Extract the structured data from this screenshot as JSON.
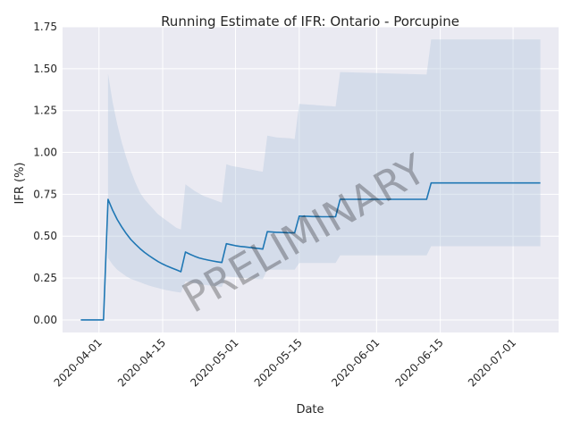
{
  "chart_data": {
    "type": "line",
    "title": "Running Estimate of IFR: Ontario - Porcupine",
    "xlabel": "Date",
    "ylabel": "IFR (%)",
    "watermark": "PRELIMINARY",
    "xlim": [
      "2020-03-24",
      "2020-07-11"
    ],
    "ylim": [
      -0.075,
      1.75
    ],
    "grid": true,
    "x_ticks": [
      "2020-04-01",
      "2020-04-15",
      "2020-05-01",
      "2020-05-15",
      "2020-06-01",
      "2020-06-15",
      "2020-07-01"
    ],
    "y_ticks": [
      "0.00",
      "0.25",
      "0.50",
      "0.75",
      "1.00",
      "1.25",
      "1.50",
      "1.75"
    ],
    "colors": {
      "line": "#1f77b4",
      "band": "#b0c4de",
      "background": "#eaeaf2",
      "grid": "#ffffff"
    },
    "series": [
      {
        "x": [
          "2020-03-28",
          "2020-03-29",
          "2020-03-30",
          "2020-03-31",
          "2020-04-01",
          "2020-04-02",
          "2020-04-03",
          "2020-04-04",
          "2020-04-05",
          "2020-04-06",
          "2020-04-07",
          "2020-04-08",
          "2020-04-09",
          "2020-04-10",
          "2020-04-11",
          "2020-04-12",
          "2020-04-13",
          "2020-04-14",
          "2020-04-15",
          "2020-04-16",
          "2020-04-17",
          "2020-04-18",
          "2020-04-19",
          "2020-04-20",
          "2020-04-21",
          "2020-04-22",
          "2020-04-23",
          "2020-04-24",
          "2020-04-25",
          "2020-04-26",
          "2020-04-27",
          "2020-04-28",
          "2020-04-29",
          "2020-04-30",
          "2020-05-01",
          "2020-05-02",
          "2020-05-03",
          "2020-05-04",
          "2020-05-05",
          "2020-05-06",
          "2020-05-07",
          "2020-05-08",
          "2020-05-09",
          "2020-05-10",
          "2020-05-11",
          "2020-05-12",
          "2020-05-13",
          "2020-05-14",
          "2020-05-15",
          "2020-05-16",
          "2020-05-17",
          "2020-05-18",
          "2020-05-19",
          "2020-05-20",
          "2020-05-21",
          "2020-05-22",
          "2020-05-23",
          "2020-05-24",
          "2020-05-25",
          "2020-05-26",
          "2020-05-27",
          "2020-05-28",
          "2020-05-29",
          "2020-05-30",
          "2020-05-31",
          "2020-06-01",
          "2020-06-02",
          "2020-06-03",
          "2020-06-04",
          "2020-06-05",
          "2020-06-06",
          "2020-06-07",
          "2020-06-08",
          "2020-06-09",
          "2020-06-10",
          "2020-06-11",
          "2020-06-12",
          "2020-06-13",
          "2020-06-14",
          "2020-06-15",
          "2020-06-16",
          "2020-06-17",
          "2020-06-18",
          "2020-06-19",
          "2020-06-20",
          "2020-06-21",
          "2020-06-22",
          "2020-06-23",
          "2020-06-24",
          "2020-06-25",
          "2020-06-26",
          "2020-06-27",
          "2020-06-28",
          "2020-06-29",
          "2020-06-30",
          "2020-07-01",
          "2020-07-02",
          "2020-07-03",
          "2020-07-04",
          "2020-07-05",
          "2020-07-06",
          "2020-07-07"
        ],
        "y": [
          0,
          0,
          0,
          0,
          0,
          0,
          0.72,
          0.655,
          0.6,
          0.555,
          0.515,
          0.48,
          0.452,
          0.426,
          0.403,
          0.384,
          0.366,
          0.348,
          0.334,
          0.321,
          0.31,
          0.299,
          0.288,
          0.405,
          0.392,
          0.38,
          0.37,
          0.363,
          0.357,
          0.352,
          0.347,
          0.343,
          0.455,
          0.449,
          0.443,
          0.439,
          0.436,
          0.433,
          0.43,
          0.427,
          0.423,
          0.527,
          0.525,
          0.523,
          0.522,
          0.521,
          0.52,
          0.52,
          0.62,
          0.619,
          0.618,
          0.617,
          0.617,
          0.616,
          0.616,
          0.616,
          0.616,
          0.72,
          0.72,
          0.72,
          0.72,
          0.72,
          0.72,
          0.72,
          0.72,
          0.72,
          0.72,
          0.72,
          0.72,
          0.72,
          0.72,
          0.72,
          0.72,
          0.72,
          0.72,
          0.72,
          0.72,
          0.818,
          0.818,
          0.818,
          0.818,
          0.818,
          0.818,
          0.818,
          0.818,
          0.818,
          0.818,
          0.818,
          0.818,
          0.818,
          0.818,
          0.818,
          0.818,
          0.818,
          0.818,
          0.818,
          0.818,
          0.818,
          0.818,
          0.818,
          0.818,
          0.818
        ]
      }
    ],
    "band": {
      "x": [
        "2020-04-03",
        "2020-04-04",
        "2020-04-05",
        "2020-04-06",
        "2020-04-07",
        "2020-04-08",
        "2020-04-09",
        "2020-04-10",
        "2020-04-11",
        "2020-04-12",
        "2020-04-13",
        "2020-04-14",
        "2020-04-15",
        "2020-04-16",
        "2020-04-17",
        "2020-04-18",
        "2020-04-19",
        "2020-04-20",
        "2020-04-21",
        "2020-04-22",
        "2020-04-23",
        "2020-04-24",
        "2020-04-25",
        "2020-04-26",
        "2020-04-27",
        "2020-04-28",
        "2020-04-29",
        "2020-04-30",
        "2020-05-01",
        "2020-05-02",
        "2020-05-03",
        "2020-05-04",
        "2020-05-05",
        "2020-05-06",
        "2020-05-07",
        "2020-05-08",
        "2020-05-09",
        "2020-05-10",
        "2020-05-11",
        "2020-05-12",
        "2020-05-13",
        "2020-05-14",
        "2020-05-15",
        "2020-05-16",
        "2020-05-17",
        "2020-05-18",
        "2020-05-19",
        "2020-05-20",
        "2020-05-21",
        "2020-05-22",
        "2020-05-23",
        "2020-05-24",
        "2020-06-12",
        "2020-06-13",
        "2020-07-07"
      ],
      "lower": [
        0.37,
        0.33,
        0.3,
        0.28,
        0.26,
        0.245,
        0.235,
        0.225,
        0.215,
        0.205,
        0.197,
        0.19,
        0.183,
        0.177,
        0.172,
        0.167,
        0.163,
        0.23,
        0.225,
        0.22,
        0.215,
        0.21,
        0.207,
        0.204,
        0.2,
        0.197,
        0.26,
        0.257,
        0.254,
        0.252,
        0.25,
        0.248,
        0.246,
        0.244,
        0.243,
        0.3,
        0.3,
        0.3,
        0.3,
        0.3,
        0.3,
        0.3,
        0.34,
        0.34,
        0.34,
        0.34,
        0.34,
        0.34,
        0.34,
        0.34,
        0.34,
        0.385,
        0.385,
        0.44,
        0.44
      ],
      "upper": [
        1.47,
        1.3,
        1.17,
        1.06,
        0.97,
        0.89,
        0.82,
        0.76,
        0.72,
        0.69,
        0.66,
        0.63,
        0.61,
        0.59,
        0.57,
        0.55,
        0.54,
        0.81,
        0.79,
        0.77,
        0.755,
        0.74,
        0.73,
        0.72,
        0.71,
        0.7,
        0.93,
        0.92,
        0.915,
        0.91,
        0.905,
        0.9,
        0.895,
        0.89,
        0.885,
        1.1,
        1.095,
        1.09,
        1.088,
        1.086,
        1.084,
        1.08,
        1.29,
        1.288,
        1.286,
        1.284,
        1.282,
        1.28,
        1.278,
        1.276,
        1.274,
        1.48,
        1.465,
        1.675,
        1.675
      ]
    }
  }
}
